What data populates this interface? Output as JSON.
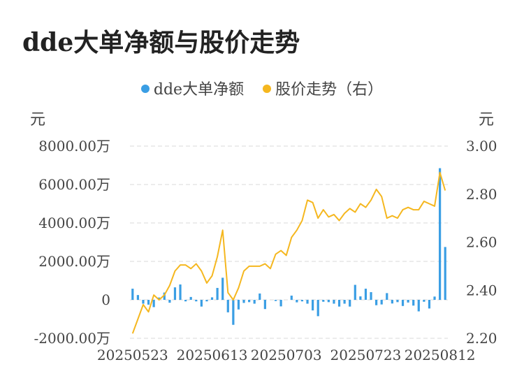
{
  "title": "dde大单净额与股价走势",
  "colors": {
    "bar": "#3a9ee4",
    "line": "#f5b71f",
    "grid": "#e6e6e6",
    "text": "#444444"
  },
  "chart_data": {
    "type": "bar+line",
    "legend_position": "top-center",
    "grid": true,
    "left_unit": "元",
    "right_unit": "元",
    "left_ticks": [
      "8000.00万",
      "6000.00万",
      "4000.00万",
      "2000.00万",
      "0",
      "-2000.00万"
    ],
    "right_ticks": [
      "3.00",
      "2.80",
      "2.60",
      "2.40",
      "2.20"
    ],
    "x_tick_labels": [
      "20250523",
      "20250613",
      "20250703",
      "20250723",
      "20250812"
    ],
    "ylim_left": [
      -2000,
      8000
    ],
    "ylim_right": [
      2.2,
      3.0
    ],
    "series": [
      {
        "name": "dde大单净额",
        "type": "bar",
        "axis": "left",
        "unit": "万",
        "values": [
          580,
          250,
          -200,
          -250,
          -380,
          120,
          380,
          -150,
          650,
          800,
          -80,
          150,
          -80,
          -350,
          -80,
          130,
          620,
          1150,
          -650,
          -1300,
          -500,
          -160,
          -120,
          -200,
          330,
          -480,
          0,
          -60,
          -340,
          0,
          220,
          -130,
          -80,
          -200,
          -550,
          -850,
          -100,
          -120,
          -200,
          -350,
          -200,
          -350,
          780,
          180,
          580,
          400,
          -280,
          -240,
          350,
          -190,
          -120,
          -320,
          -140,
          -300,
          -600,
          -100,
          -450,
          170,
          6850,
          2750
        ]
      },
      {
        "name": "股价走势（右）",
        "type": "line",
        "axis": "right",
        "values": [
          2.22,
          2.28,
          2.34,
          2.31,
          2.38,
          2.36,
          2.38,
          2.42,
          2.48,
          2.505,
          2.505,
          2.49,
          2.51,
          2.48,
          2.43,
          2.46,
          2.54,
          2.65,
          2.39,
          2.36,
          2.41,
          2.48,
          2.5,
          2.5,
          2.5,
          2.51,
          2.49,
          2.55,
          2.565,
          2.545,
          2.62,
          2.65,
          2.69,
          2.775,
          2.765,
          2.7,
          2.735,
          2.705,
          2.715,
          2.69,
          2.72,
          2.74,
          2.725,
          2.76,
          2.745,
          2.775,
          2.82,
          2.79,
          2.7,
          2.71,
          2.7,
          2.735,
          2.745,
          2.735,
          2.735,
          2.77,
          2.76,
          2.75,
          2.89,
          2.815
        ]
      }
    ]
  }
}
